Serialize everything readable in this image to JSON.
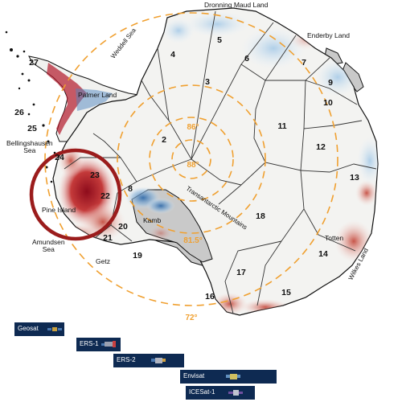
{
  "place_labels": {
    "dronning_maud_land": "Dronning Maud Land",
    "enderby_land": "Enderby Land",
    "weddell_sea": "Weddell Sea",
    "palmer_land": "Palmer Land",
    "bellingshausen_sea": "Bellingshausen\nSea",
    "pine_island": "Pine Island",
    "amundsen_sea": "Amundsen\nSea",
    "getz": "Getz",
    "kamb": "Kamb",
    "transantarctic_mountains": "Transantarctic Mountains",
    "totten": "Totten",
    "wilkes_land": "Wilkes Land"
  },
  "basin_numbers": [
    "2",
    "3",
    "4",
    "5",
    "6",
    "7",
    "8",
    "9",
    "10",
    "11",
    "12",
    "13",
    "14",
    "15",
    "16",
    "17",
    "18",
    "19",
    "20",
    "21",
    "22",
    "23",
    "24",
    "25",
    "26",
    "27"
  ],
  "latitude_labels": {
    "lat_86": "86°",
    "lat_88": "88°",
    "lat_81_5": "81.5°",
    "lat_72": "72°"
  },
  "missions": [
    {
      "name": "Geosat"
    },
    {
      "name": "ERS-1"
    },
    {
      "name": "ERS-2"
    },
    {
      "name": "Envisat"
    },
    {
      "name": "ICESat-1"
    }
  ],
  "colors": {
    "ice_base": "#f3f3f1",
    "ice_shelf": "#c9c9c9",
    "thinning": "#b2182b",
    "thickening": "#2166ac",
    "latitude_circles": "#f0a030",
    "highlight_circle": "#9b1c1c",
    "mission_bar": "#0e2a52"
  }
}
